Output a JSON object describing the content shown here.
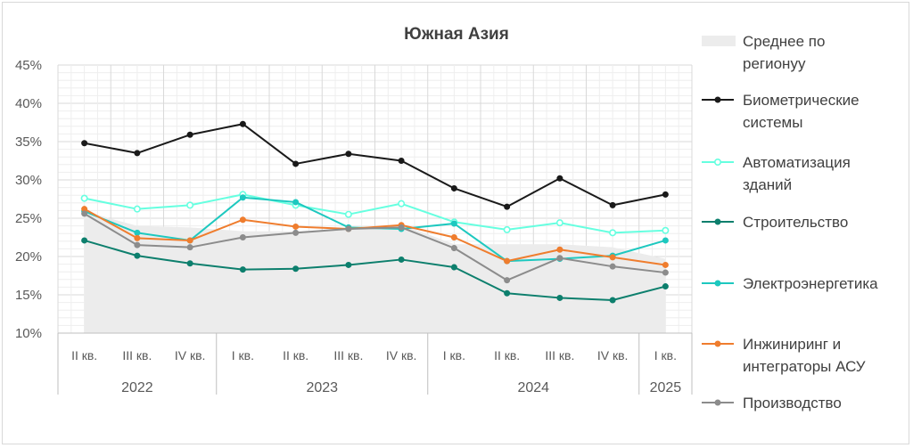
{
  "chart_data": {
    "type": "line",
    "title": "Южная Азия",
    "categories": [
      "II кв.",
      "III кв.",
      "IV кв.",
      "I кв.",
      "II кв.",
      "III кв.",
      "IV кв.",
      "I кв.",
      "II кв.",
      "III кв.",
      "IV кв.",
      "I кв."
    ],
    "year_groups": [
      {
        "label": "2022",
        "count": 3
      },
      {
        "label": "2023",
        "count": 4
      },
      {
        "label": "2024",
        "count": 4
      },
      {
        "label": "2025",
        "count": 1
      }
    ],
    "y_axis": {
      "min": 10,
      "max": 45,
      "step": 5,
      "tick_labels": [
        "10%",
        "15%",
        "20%",
        "25%",
        "30%",
        "35%",
        "40%",
        "45%"
      ]
    },
    "grid": true,
    "legend_position": "right",
    "area": {
      "name": "Среднее по регионуу",
      "display_lines": [
        "Среднее по",
        "регионуу"
      ],
      "color": "#ececec",
      "values": [
        25.9,
        24.0,
        23.8,
        23.3,
        23.3,
        23.6,
        24.2,
        21.6,
        21.6,
        21.6,
        21.2,
        19.7
      ]
    },
    "series": [
      {
        "name": "Биометрические системы",
        "display_lines": [
          "Биометрические",
          "системы"
        ],
        "color": "#1a1a1a",
        "marker": "filled",
        "values": [
          34.8,
          33.5,
          35.9,
          37.3,
          32.1,
          33.4,
          32.5,
          28.9,
          26.5,
          30.2,
          26.7,
          28.1
        ]
      },
      {
        "name": "Автоматизация зданий",
        "display_lines": [
          "Автоматизация",
          "зданий"
        ],
        "color": "#66ffe0",
        "marker": "hollow",
        "values": [
          27.6,
          26.2,
          26.7,
          28.1,
          26.7,
          25.5,
          26.9,
          24.5,
          23.5,
          24.4,
          23.1,
          23.4
        ]
      },
      {
        "name": "Строительство",
        "display_lines": [
          "Строительство"
        ],
        "color": "#0d7f6d",
        "marker": "filled",
        "values": [
          22.1,
          20.1,
          19.1,
          18.3,
          18.4,
          18.9,
          19.6,
          18.6,
          15.2,
          14.6,
          14.3,
          16.1
        ]
      },
      {
        "name": "Электроэнергетика",
        "display_lines": [
          "Электроэнергетика"
        ],
        "color": "#1dc8bf",
        "marker": "filled",
        "values": [
          25.9,
          23.1,
          22.1,
          27.7,
          27.1,
          23.8,
          23.6,
          24.3,
          19.4,
          19.7,
          20.1,
          22.1
        ]
      },
      {
        "name": "Инжиниринг и интеграторы АСУ",
        "display_lines": [
          "Инжиниринг и",
          "интеграторы АСУ"
        ],
        "color": "#ef7d2e",
        "marker": "filled",
        "values": [
          26.2,
          22.4,
          22.1,
          24.8,
          23.9,
          23.6,
          24.1,
          22.5,
          19.4,
          20.9,
          19.9,
          18.9
        ]
      },
      {
        "name": "Производство",
        "display_lines": [
          "Производство"
        ],
        "color": "#8c8c8c",
        "marker": "filled",
        "values": [
          25.6,
          21.5,
          21.2,
          22.5,
          23.1,
          23.6,
          23.8,
          21.1,
          16.9,
          19.8,
          18.7,
          17.9
        ]
      }
    ]
  }
}
